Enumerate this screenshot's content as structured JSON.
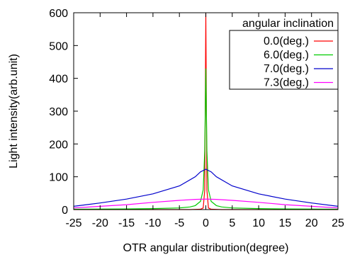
{
  "chart_data": {
    "type": "line",
    "title": "",
    "xlabel": "OTR angular distribution(degree)",
    "ylabel": "Light intensity(arb.unit)",
    "xlim": [
      -25,
      25
    ],
    "ylim": [
      0,
      600
    ],
    "xticks": [
      -25,
      -20,
      -15,
      -10,
      -5,
      0,
      5,
      10,
      15,
      20,
      25
    ],
    "yticks": [
      0,
      100,
      200,
      300,
      400,
      500,
      600
    ],
    "grid": false,
    "legend": {
      "title": "angular inclination",
      "position": "top-right"
    },
    "series": [
      {
        "name": "0.0(deg.)",
        "color": "#ff0000",
        "x": [
          -25,
          -10,
          -3,
          -1,
          -0.5,
          -0.2,
          0,
          0.2,
          0.5,
          1,
          3,
          10,
          25
        ],
        "y": [
          0,
          0,
          0,
          1,
          5,
          60,
          598,
          60,
          5,
          1,
          0,
          0,
          0
        ]
      },
      {
        "name": "6.0(deg.)",
        "color": "#00cc00",
        "x": [
          -25,
          -15,
          -10,
          -5,
          -3,
          -2,
          -1,
          -0.5,
          -0.2,
          0,
          0.2,
          0.5,
          1,
          2,
          3,
          5,
          10,
          15,
          25
        ],
        "y": [
          1,
          2,
          3,
          5,
          8,
          12,
          25,
          60,
          180,
          430,
          180,
          60,
          25,
          12,
          8,
          5,
          3,
          2,
          1
        ]
      },
      {
        "name": "7.0(deg.)",
        "color": "#0000cc",
        "x": [
          -25,
          -20,
          -15,
          -10,
          -5,
          -2,
          -1,
          0,
          1,
          2,
          5,
          10,
          15,
          20,
          25
        ],
        "y": [
          10,
          20,
          32,
          48,
          72,
          100,
          115,
          123,
          115,
          100,
          72,
          48,
          32,
          20,
          10
        ]
      },
      {
        "name": "7.3(deg.)",
        "color": "#ff00ff",
        "x": [
          -25,
          -20,
          -15,
          -10,
          -5,
          -2,
          0,
          2,
          5,
          10,
          15,
          20,
          25
        ],
        "y": [
          5,
          10,
          15,
          22,
          28,
          31,
          32,
          31,
          28,
          22,
          15,
          10,
          5
        ]
      }
    ]
  }
}
